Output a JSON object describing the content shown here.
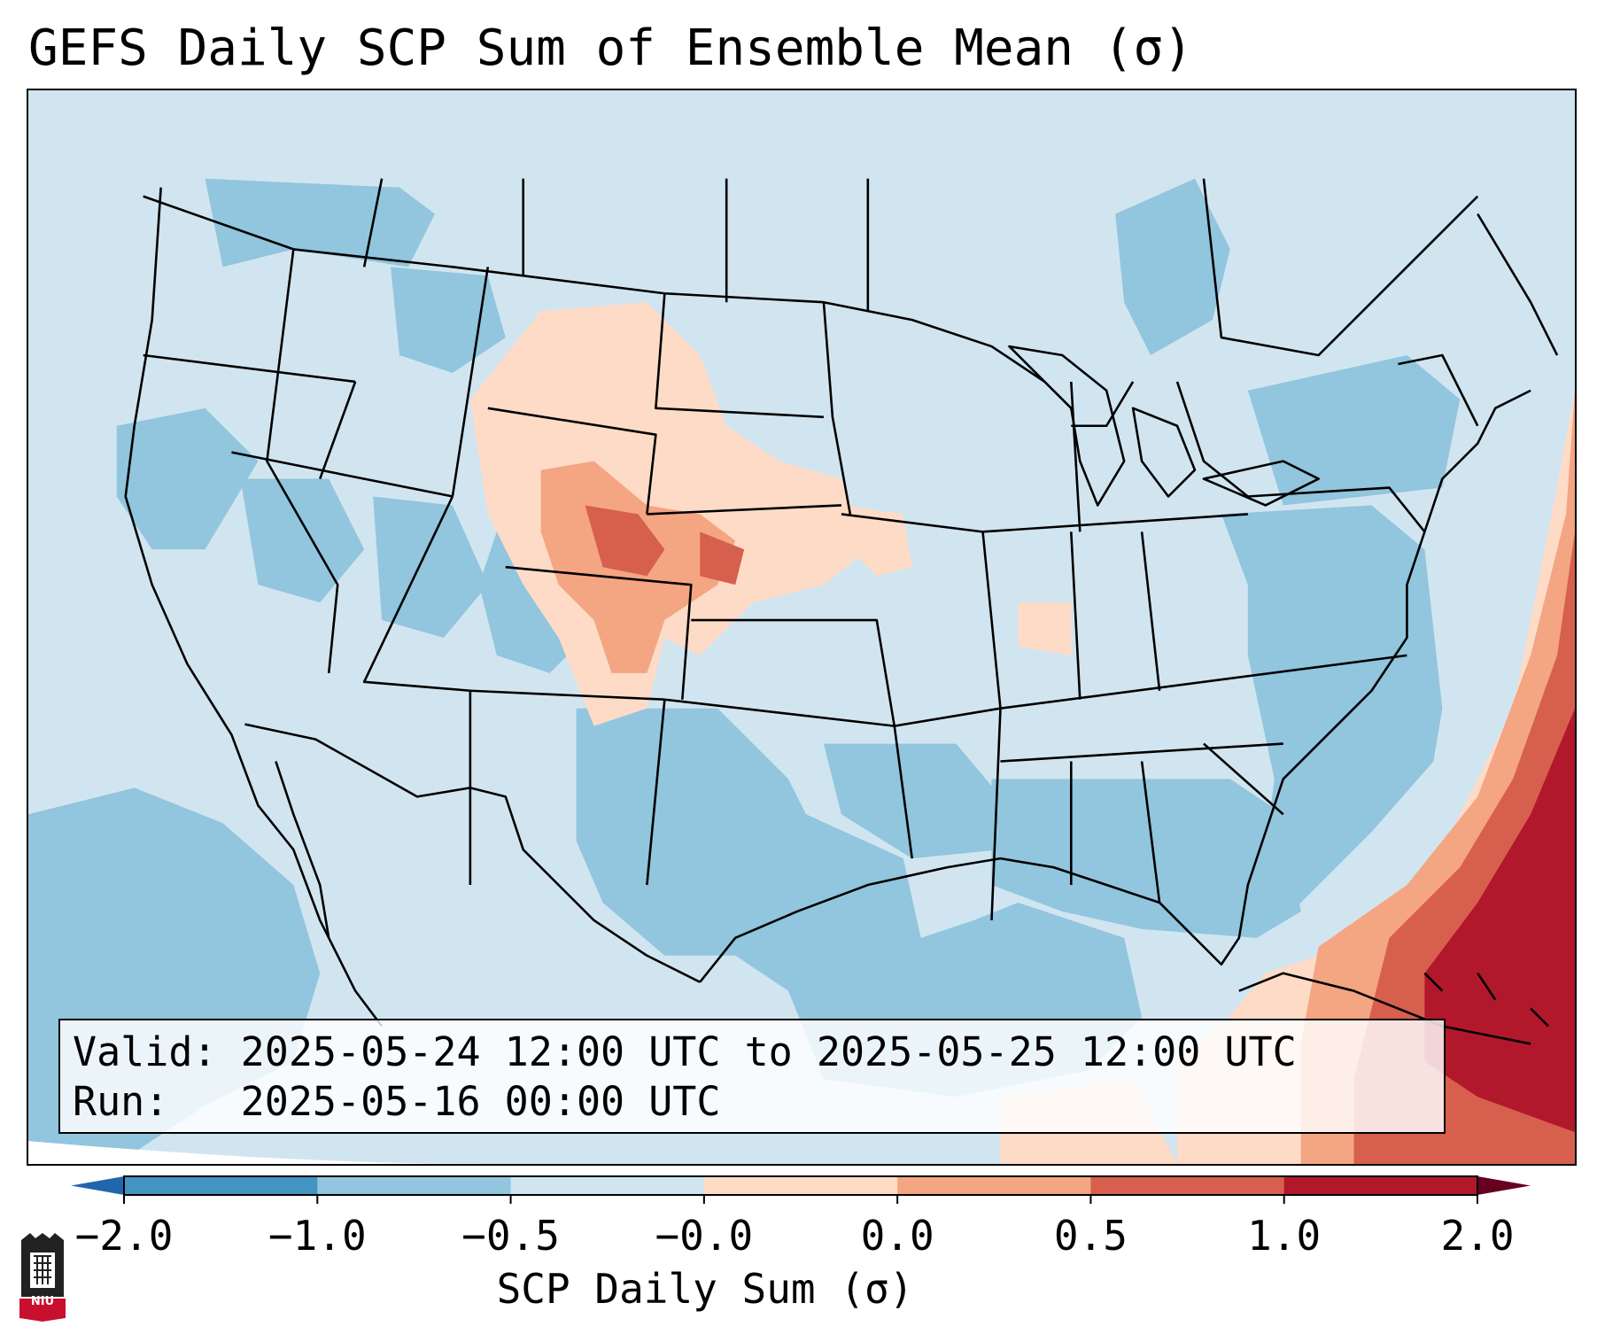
{
  "title": "GEFS Daily SCP Sum of Ensemble Mean (σ)",
  "info": {
    "valid_line": "Valid: 2025-05-24 12:00 UTC to 2025-05-25 12:00 UTC",
    "run_line": "Run:   2025-05-16 00:00 UTC"
  },
  "colorbar": {
    "label": "SCP Daily Sum (σ)",
    "ticks": [
      "−2.0",
      "−1.0",
      "−0.5",
      "−0.0",
      "0.0",
      "0.5",
      "1.0",
      "2.0"
    ],
    "colors": [
      "#4393c3",
      "#92c5de",
      "#d1e5f0",
      "#f7f7f7",
      "#fddbc7",
      "#f4a582",
      "#d6604d",
      "#b2182b"
    ],
    "under_color": "#2166ac",
    "over_color": "#67001f"
  },
  "logo": {
    "text": "NIU",
    "color": "#c8102e"
  },
  "map": {
    "background_color": "#d1e5f0",
    "region": "Contiguous United States",
    "features": [
      "state borders",
      "country borders",
      "coastlines"
    ]
  }
}
